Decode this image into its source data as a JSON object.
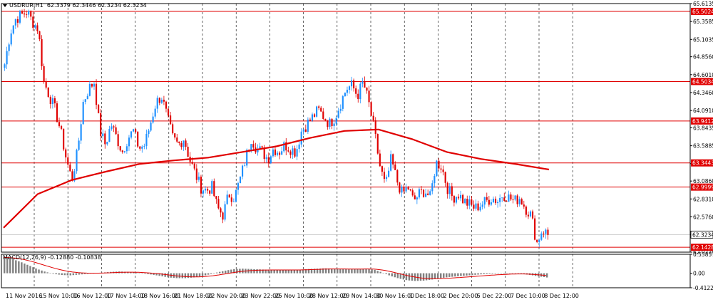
{
  "header": {
    "symbol": "USDRUR,H1",
    "ohlc": "62.3379 62.3446 62.3234 62.3234"
  },
  "macd_header": {
    "label": "MACD(12,26,9) -0.12880 -0.10838"
  },
  "colors": {
    "bull": "#1e90ff",
    "bear": "#e00000",
    "ma": "#e00000",
    "level": "#e00000",
    "grid": "#000000",
    "hist": "#808080",
    "signal": "#e00000"
  },
  "chart_data": [
    {
      "type": "candlestick",
      "title": "USDRUR,H1",
      "ylim": [
        62.0735,
        65.6135
      ],
      "y_ticks": [
        "65.6135",
        "65.3585",
        "65.1035",
        "64.8560",
        "64.6010",
        "64.3460",
        "64.0910",
        "63.8435",
        "63.5885",
        "63.3335",
        "63.0860",
        "62.8310",
        "62.5760",
        "62.3234",
        "62.0735"
      ],
      "x_ticks": [
        "11 Nov 2016",
        "15 Nov 10:00",
        "16 Nov 12:00",
        "17 Nov 14:00",
        "18 Nov 16:00",
        "21 Nov 18:00",
        "22 Nov 20:00",
        "23 Nov 22:00",
        "25 Nov 10:00",
        "28 Nov 12:00",
        "29 Nov 14:00",
        "30 Nov 16:00",
        "1 Dec 18:00",
        "2 Dec 20:00",
        "5 Dec 22:00",
        "7 Dec 10:00",
        "8 Dec 12:00"
      ],
      "current_price": "62.3234",
      "levels": [
        "65.5024",
        "64.5034",
        "63.9412",
        "63.3443",
        "62.9999",
        "62.1428"
      ],
      "close_path": [
        64.75,
        65.2,
        65.4,
        65.45,
        65.5,
        65.35,
        65.25,
        64.5,
        64.3,
        64.1,
        63.8,
        63.4,
        63.1,
        63.5,
        64.2,
        64.4,
        64.5,
        63.8,
        63.6,
        63.9,
        63.7,
        63.5,
        63.7,
        63.8,
        63.55,
        63.6,
        63.9,
        64.2,
        64.3,
        64.0,
        63.7,
        63.6,
        63.7,
        63.4,
        63.2,
        63.0,
        62.95,
        63.0,
        62.7,
        62.6,
        62.9,
        62.85,
        63.1,
        63.4,
        63.7,
        63.55,
        63.5,
        63.4,
        63.55,
        63.5,
        63.6,
        63.55,
        63.5,
        63.8,
        63.9,
        64.0,
        64.1,
        64.0,
        63.9,
        64.0,
        64.2,
        64.4,
        64.45,
        64.3,
        64.5,
        64.2,
        63.8,
        63.3,
        63.0,
        63.4,
        63.1,
        62.9,
        63.0,
        62.8,
        62.9,
        62.95,
        62.85,
        63.35,
        63.3,
        63.0,
        62.85,
        62.9,
        62.8,
        62.75,
        62.7,
        62.75,
        62.8,
        62.85,
        62.8,
        62.9,
        62.85,
        62.8,
        62.85,
        62.7,
        62.6,
        62.2,
        62.4,
        62.32
      ],
      "moving_average": [
        {
          "date": "11 Nov 2016",
          "y": 62.42
        },
        {
          "date": "15 Nov 10:00",
          "y": 62.9
        },
        {
          "date": "16 Nov 12:00",
          "y": 63.1
        },
        {
          "date": "17 Nov 14:00",
          "y": 63.22
        },
        {
          "date": "18 Nov 16:00",
          "y": 63.33
        },
        {
          "date": "21 Nov 18:00",
          "y": 63.38
        },
        {
          "date": "22 Nov 20:00",
          "y": 63.42
        },
        {
          "date": "23 Nov 22:00",
          "y": 63.5
        },
        {
          "date": "25 Nov 10:00",
          "y": 63.58
        },
        {
          "date": "28 Nov 12:00",
          "y": 63.7
        },
        {
          "date": "29 Nov 14:00",
          "y": 63.8
        },
        {
          "date": "30 Nov 16:00",
          "y": 63.82
        },
        {
          "date": "1 Dec 18:00",
          "y": 63.68
        },
        {
          "date": "2 Dec 20:00",
          "y": 63.5
        },
        {
          "date": "5 Dec 22:00",
          "y": 63.4
        },
        {
          "date": "7 Dec 10:00",
          "y": 63.33
        },
        {
          "date": "8 Dec 12:00",
          "y": 63.25
        }
      ]
    },
    {
      "type": "bar",
      "title": "MACD(12,26,9) -0.12880 -0.10838",
      "ylim": [
        -0.41225,
        0.53857
      ],
      "y_ticks": [
        "0.53857",
        "0.00",
        "-0.41225"
      ],
      "macd_path": [
        0.45,
        0.4,
        0.32,
        0.22,
        0.12,
        0.04,
        -0.02,
        -0.05,
        -0.06,
        -0.04,
        -0.02,
        0.0,
        0.02,
        0.04,
        0.05,
        0.04,
        0.02,
        -0.01,
        -0.04,
        -0.08,
        -0.12,
        -0.14,
        -0.14,
        -0.12,
        -0.08,
        -0.03,
        0.03,
        0.08,
        0.12,
        0.13,
        0.12,
        0.11,
        0.1,
        0.1,
        0.09,
        0.09,
        0.1,
        0.12,
        0.13,
        0.14,
        0.13,
        0.12,
        0.11,
        0.12,
        0.13,
        0.1,
        0.02,
        -0.08,
        -0.15,
        -0.2,
        -0.22,
        -0.21,
        -0.18,
        -0.14,
        -0.11,
        -0.09,
        -0.07,
        -0.05,
        -0.03,
        -0.02,
        -0.01,
        0.0,
        0.0,
        -0.02,
        -0.05,
        -0.09,
        -0.12
      ]
    }
  ]
}
